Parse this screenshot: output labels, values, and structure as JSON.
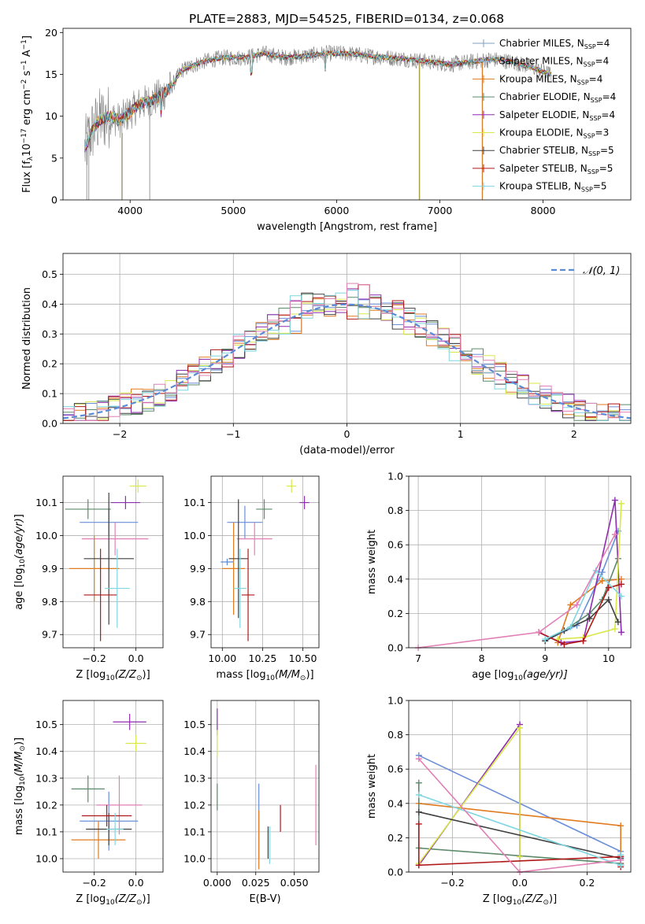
{
  "chart_data": [
    {
      "id": "spectrum",
      "type": "line",
      "title": "PLATE=2883, MJD=54525, FIBERID=0134, z=0.068",
      "xlabel": "wavelength [Angstrom, rest frame]",
      "ylabel": "Flux [f$_\\lambda$10$^{-17}$ erg cm$^{-2}$ s$^{-1}$ A$^{-1}$]",
      "ylabel_parts": {
        "pre": "Flux [f",
        "sub": "λ",
        "mid": "10",
        "sup1": "−17",
        "mid2": " erg cm",
        "sup2": "−2",
        "mid3": " s",
        "sup3": "−1",
        "mid4": " A",
        "sup4": "−1",
        "post": "]"
      },
      "xlim": [
        3350,
        8850
      ],
      "ylim": [
        0,
        20.5
      ],
      "xticks": [
        4000,
        5000,
        6000,
        7000,
        8000
      ],
      "yticks": [
        0,
        5,
        10,
        15,
        20
      ],
      "grid": false,
      "legend_position": "top-right",
      "data_color": "#808080",
      "spectrum_shape": [
        [
          3560,
          6
        ],
        [
          3620,
          8
        ],
        [
          3700,
          9.5
        ],
        [
          3800,
          10
        ],
        [
          3900,
          9.5
        ],
        [
          4000,
          10.5
        ],
        [
          4100,
          11.5
        ],
        [
          4200,
          11.8
        ],
        [
          4300,
          12.5
        ],
        [
          4400,
          13.5
        ],
        [
          4500,
          15.5
        ],
        [
          4700,
          16.5
        ],
        [
          4900,
          17
        ],
        [
          5100,
          17
        ],
        [
          5300,
          17.5
        ],
        [
          5500,
          17
        ],
        [
          5700,
          17.2
        ],
        [
          5900,
          17.5
        ],
        [
          6100,
          17.5
        ],
        [
          6300,
          17.2
        ],
        [
          6500,
          17
        ],
        [
          6700,
          16.8
        ],
        [
          6900,
          16.5
        ],
        [
          7100,
          16.2
        ],
        [
          7300,
          16.5
        ],
        [
          7500,
          16.8
        ],
        [
          7700,
          16.5
        ],
        [
          7900,
          15.8
        ],
        [
          8000,
          15.3
        ],
        [
          8080,
          15
        ]
      ],
      "legend": [
        {
          "label_pre": "Chabrier MILES, N",
          "sub": "SSP",
          "label_post": "=4",
          "color": "#7f9fbf"
        },
        {
          "label_pre": "Salpeter MILES, N",
          "sub": "SSP",
          "label_post": "=4",
          "color": "#9fb8d8"
        },
        {
          "label_pre": "Kroupa MILES, N",
          "sub": "SSP",
          "label_post": "=4",
          "color": "#e07b20"
        },
        {
          "label_pre": "Chabrier ELODIE, N",
          "sub": "SSP",
          "label_post": "=4",
          "color": "#5c8a6a"
        },
        {
          "label_pre": "Salpeter ELODIE, N",
          "sub": "SSP",
          "label_post": "=4",
          "color": "#8e2cb0"
        },
        {
          "label_pre": "Kroupa ELODIE, N",
          "sub": "SSP",
          "label_post": "=3",
          "color": "#d8e84a"
        },
        {
          "label_pre": "Chabrier STELIB, N",
          "sub": "SSP",
          "label_post": "=5",
          "color": "#404040"
        },
        {
          "label_pre": "Salpeter STELIB, N",
          "sub": "SSP",
          "label_post": "=5",
          "color": "#b01818"
        },
        {
          "label_pre": "Kroupa STELIB, N",
          "sub": "SSP",
          "label_post": "=5",
          "color": "#7fd6e0"
        }
      ]
    },
    {
      "id": "residual-histogram",
      "type": "bar",
      "title": "",
      "xlabel": "(data-model)/error",
      "ylabel": "Normed distribution",
      "xlim": [
        -2.5,
        2.5
      ],
      "ylim": [
        0,
        0.57
      ],
      "xticks": [
        -2,
        -1,
        0,
        1,
        2
      ],
      "yticks": [
        0.0,
        0.1,
        0.2,
        0.3,
        0.4,
        0.5
      ],
      "grid": true,
      "legend_position": "top-right",
      "normal_curve": {
        "label": "𝒩(0, 1)",
        "mean": 0,
        "sigma": 1,
        "color": "#5b8bd6"
      },
      "bin_width": 0.1,
      "bin_start": -2.5,
      "series_colors": [
        "#6a8fd8",
        "#e07b20",
        "#5c8a6a",
        "#8e2cb0",
        "#d8e84a",
        "#404040",
        "#b01818",
        "#7fd6e0",
        "#e27fb5"
      ]
    },
    {
      "id": "age-vs-Z",
      "type": "scatter",
      "xlabel_pre": "Z [log",
      "xlabel_sub": "10",
      "xlabel_post": "(Z/Z",
      "xlabel_sun": "⊙",
      "xlabel_end": ")]",
      "ylabel": "age  [log10(age/yr)]",
      "xlim": [
        -0.35,
        0.13
      ],
      "ylim": [
        9.66,
        10.18
      ],
      "xticks": [
        -0.2,
        0.0
      ],
      "yticks": [
        9.7,
        9.8,
        9.9,
        10.0,
        10.1
      ],
      "grid": true,
      "points": [
        {
          "x": -0.13,
          "xerr": 0.14,
          "y": 10.04,
          "yerr": 0.04,
          "c": "#6a8fd8"
        },
        {
          "x": -0.23,
          "xerr": 0.11,
          "y": 10.08,
          "yerr": 0.03,
          "c": "#5c8a6a"
        },
        {
          "x": -0.05,
          "xerr": 0.07,
          "y": 10.1,
          "yerr": 0.02,
          "c": "#8e2cb0"
        },
        {
          "x": 0.01,
          "xerr": 0.04,
          "y": 10.15,
          "yerr": 0.02,
          "c": "#d8e84a"
        },
        {
          "x": -0.1,
          "xerr": 0.16,
          "y": 9.99,
          "yerr": 0.05,
          "c": "#e27fb5"
        },
        {
          "x": -0.2,
          "xerr": 0.12,
          "y": 9.9,
          "yerr": 0.1,
          "c": "#e07b20"
        },
        {
          "x": -0.13,
          "xerr": 0.12,
          "y": 9.93,
          "yerr": 0.2,
          "c": "#404040"
        },
        {
          "x": -0.17,
          "xerr": 0.08,
          "y": 9.82,
          "yerr": 0.14,
          "c": "#b01818"
        },
        {
          "x": -0.09,
          "xerr": 0.06,
          "y": 9.84,
          "yerr": 0.12,
          "c": "#7fd6e0"
        }
      ]
    },
    {
      "id": "age-vs-mass",
      "type": "scatter",
      "xlabel_pre": "mass [log",
      "xlabel_sub": "10",
      "xlabel_post": "(M/M",
      "xlabel_sun": "⊙",
      "xlabel_end": ")]",
      "xlim": [
        9.93,
        10.6
      ],
      "ylim": [
        9.66,
        10.18
      ],
      "xticks": [
        10.0,
        10.25,
        10.5
      ],
      "xticklabels": [
        "10.00",
        "10.25",
        "10.50"
      ],
      "yticks": [
        9.7,
        9.8,
        9.9,
        10.0,
        10.1
      ],
      "grid": true,
      "points": [
        {
          "x": 10.14,
          "xerr": 0.11,
          "y": 10.04,
          "yerr": 0.05,
          "c": "#6a8fd8"
        },
        {
          "x": 10.26,
          "xerr": 0.05,
          "y": 10.08,
          "yerr": 0.03,
          "c": "#5c8a6a"
        },
        {
          "x": 10.51,
          "xerr": 0.03,
          "y": 10.1,
          "yerr": 0.02,
          "c": "#8e2cb0"
        },
        {
          "x": 10.43,
          "xerr": 0.03,
          "y": 10.15,
          "yerr": 0.02,
          "c": "#d8e84a"
        },
        {
          "x": 10.2,
          "xerr": 0.11,
          "y": 9.99,
          "yerr": 0.05,
          "c": "#e27fb5"
        },
        {
          "x": 10.07,
          "xerr": 0.07,
          "y": 9.9,
          "yerr": 0.14,
          "c": "#e07b20"
        },
        {
          "x": 10.1,
          "xerr": 0.06,
          "y": 9.93,
          "yerr": 0.18,
          "c": "#404040"
        },
        {
          "x": 10.16,
          "xerr": 0.04,
          "y": 9.82,
          "yerr": 0.14,
          "c": "#b01818"
        },
        {
          "x": 10.11,
          "xerr": 0.04,
          "y": 9.84,
          "yerr": 0.12,
          "c": "#7fd6e0"
        },
        {
          "x": 10.03,
          "xerr": 0.04,
          "y": 9.92,
          "yerr": 0.01,
          "c": "#5b8bd6"
        }
      ]
    },
    {
      "id": "mass-weight-vs-age",
      "type": "line",
      "xlabel_pre": "age  [log",
      "xlabel_sub": "10",
      "xlabel_post": "(age/yr)]",
      "ylabel": "mass weight",
      "xlim": [
        6.85,
        10.35
      ],
      "ylim": [
        0,
        1.0
      ],
      "xticks": [
        7,
        8,
        9,
        10
      ],
      "yticks": [
        0.0,
        0.2,
        0.4,
        0.6,
        0.8,
        1.0
      ],
      "grid": true,
      "series": [
        {
          "c": "#6a8fd8",
          "x": [
            9.0,
            9.5,
            9.9,
            10.15
          ],
          "y": [
            0.04,
            0.13,
            0.44,
            0.68
          ]
        },
        {
          "c": "#e07b20",
          "x": [
            9.2,
            9.4,
            9.9,
            10.2
          ],
          "y": [
            0.03,
            0.25,
            0.39,
            0.4
          ]
        },
        {
          "c": "#5c8a6a",
          "x": [
            9.3,
            9.7,
            9.9,
            10.15
          ],
          "y": [
            0.1,
            0.2,
            0.28,
            0.52
          ]
        },
        {
          "c": "#8e2cb0",
          "x": [
            8.9,
            9.25,
            9.6,
            10.1,
            10.2
          ],
          "y": [
            0.09,
            0.03,
            0.04,
            0.86,
            0.09
          ]
        },
        {
          "c": "#d8e84a",
          "x": [
            9.2,
            9.6,
            10.1,
            10.2
          ],
          "y": [
            0.05,
            0.06,
            0.11,
            0.84
          ]
        },
        {
          "c": "#404040",
          "x": [
            9.0,
            9.3,
            9.7,
            10.0,
            10.15
          ],
          "y": [
            0.04,
            0.1,
            0.17,
            0.28,
            0.15
          ]
        },
        {
          "c": "#b01818",
          "x": [
            8.9,
            9.3,
            9.6,
            10.0,
            10.2
          ],
          "y": [
            0.09,
            0.02,
            0.04,
            0.35,
            0.37
          ]
        },
        {
          "c": "#7fd6e0",
          "x": [
            9.0,
            9.4,
            9.8,
            10.2
          ],
          "y": [
            0.05,
            0.12,
            0.45,
            0.3
          ]
        },
        {
          "c": "#e27fb5",
          "x": [
            7.0,
            8.9,
            9.5,
            10.1
          ],
          "y": [
            0.0,
            0.09,
            0.25,
            0.66
          ]
        }
      ]
    },
    {
      "id": "mass-vs-Z",
      "type": "scatter",
      "xlabel_pre": "Z [log",
      "xlabel_sub": "10",
      "xlabel_post": "(Z/Z",
      "xlabel_sun": "⊙",
      "xlabel_end": ")]",
      "ylabel": "mass [log10(M/M⊙)]",
      "xlim": [
        -0.35,
        0.13
      ],
      "ylim": [
        9.95,
        10.59
      ],
      "xticks": [
        -0.2,
        0.0
      ],
      "yticks": [
        10.0,
        10.1,
        10.2,
        10.3,
        10.4,
        10.5
      ],
      "grid": true,
      "points": [
        {
          "x": -0.13,
          "xerr": 0.14,
          "y": 10.14,
          "yerr": 0.11,
          "c": "#6a8fd8"
        },
        {
          "x": -0.23,
          "xerr": 0.08,
          "y": 10.26,
          "yerr": 0.05,
          "c": "#5c8a6a"
        },
        {
          "x": -0.03,
          "xerr": 0.08,
          "y": 10.51,
          "yerr": 0.03,
          "c": "#8e2cb0"
        },
        {
          "x": 0.0,
          "xerr": 0.05,
          "y": 10.43,
          "yerr": 0.03,
          "c": "#d8e84a"
        },
        {
          "x": -0.08,
          "xerr": 0.11,
          "y": 10.2,
          "yerr": 0.11,
          "c": "#e27fb5"
        },
        {
          "x": -0.18,
          "xerr": 0.13,
          "y": 10.07,
          "yerr": 0.07,
          "c": "#e07b20"
        },
        {
          "x": -0.13,
          "xerr": 0.11,
          "y": 10.11,
          "yerr": 0.06,
          "c": "#404040"
        },
        {
          "x": -0.14,
          "xerr": 0.12,
          "y": 10.16,
          "yerr": 0.04,
          "c": "#b01818"
        },
        {
          "x": -0.1,
          "xerr": 0.04,
          "y": 10.11,
          "yerr": 0.06,
          "c": "#7fd6e0"
        }
      ]
    },
    {
      "id": "mass-vs-EBV",
      "type": "scatter",
      "xlabel": "E(B-V)",
      "xlim": [
        -0.004,
        0.066
      ],
      "ylim": [
        9.95,
        10.59
      ],
      "xticks": [
        0.0,
        0.025,
        0.05
      ],
      "xticklabels": [
        "0.000",
        "0.025",
        "0.050"
      ],
      "yticks": [
        10.0,
        10.1,
        10.2,
        10.3,
        10.4,
        10.5
      ],
      "grid": true,
      "points": [
        {
          "x": 0.0,
          "y": 10.51,
          "yerr": 0.05,
          "c": "#8e2cb0"
        },
        {
          "x": 0.0,
          "y": 10.43,
          "yerr": 0.05,
          "c": "#d8e84a"
        },
        {
          "x": 0.0,
          "y": 10.23,
          "yerr": 0.05,
          "c": "#5c8a6a"
        },
        {
          "x": 0.027,
          "y": 10.14,
          "yerr": 0.14,
          "c": "#6a8fd8"
        },
        {
          "x": 0.027,
          "y": 10.07,
          "yerr": 0.11,
          "c": "#e07b20"
        },
        {
          "x": 0.033,
          "y": 10.06,
          "yerr": 0.06,
          "c": "#404040"
        },
        {
          "x": 0.034,
          "y": 10.05,
          "yerr": 0.07,
          "c": "#7fd6e0"
        },
        {
          "x": 0.041,
          "y": 10.15,
          "yerr": 0.05,
          "c": "#b01818"
        },
        {
          "x": 0.064,
          "y": 10.2,
          "yerr": 0.15,
          "c": "#e27fb5"
        }
      ]
    },
    {
      "id": "mass-weight-vs-Z",
      "type": "line",
      "xlabel_pre": "Z [log",
      "xlabel_sub": "10",
      "xlabel_post": "(Z/Z",
      "xlabel_sun": "⊙",
      "xlabel_end": ")]",
      "ylabel": "mass weight",
      "xlim": [
        -0.33,
        0.33
      ],
      "ylim": [
        0,
        1.0
      ],
      "xticks": [
        -0.2,
        0.0,
        0.2
      ],
      "yticks": [
        0.0,
        0.2,
        0.4,
        0.6,
        0.8,
        1.0
      ],
      "grid": true,
      "series": [
        {
          "c": "#6a8fd8",
          "x": [
            -0.3,
            0.3,
            0.3
          ],
          "y": [
            0.68,
            0.12,
            0.08
          ]
        },
        {
          "c": "#e07b20",
          "x": [
            -0.3,
            0.3,
            0.3
          ],
          "y": [
            0.4,
            0.27,
            0.05
          ]
        },
        {
          "c": "#5c8a6a",
          "x": [
            -0.3,
            -0.3,
            0.3,
            0.3
          ],
          "y": [
            0.52,
            0.14,
            0.05,
            0.04
          ]
        },
        {
          "c": "#8e2cb0",
          "x": [
            -0.3,
            0.0,
            0.0
          ],
          "y": [
            0.04,
            0.86,
            0.09
          ]
        },
        {
          "c": "#d8e84a",
          "x": [
            -0.3,
            0.0,
            0.0
          ],
          "y": [
            0.05,
            0.84,
            0.09
          ]
        },
        {
          "c": "#404040",
          "x": [
            -0.3,
            0.3,
            0.3
          ],
          "y": [
            0.35,
            0.08,
            0.04
          ]
        },
        {
          "c": "#b01818",
          "x": [
            -0.3,
            -0.3,
            0.3,
            0.3
          ],
          "y": [
            0.28,
            0.04,
            0.09,
            0.03
          ]
        },
        {
          "c": "#7fd6e0",
          "x": [
            -0.3,
            0.3,
            0.3
          ],
          "y": [
            0.45,
            0.04,
            0.1
          ]
        },
        {
          "c": "#e27fb5",
          "x": [
            -0.3,
            0.0,
            0.3
          ],
          "y": [
            0.66,
            0.0,
            0.07
          ]
        }
      ]
    }
  ]
}
